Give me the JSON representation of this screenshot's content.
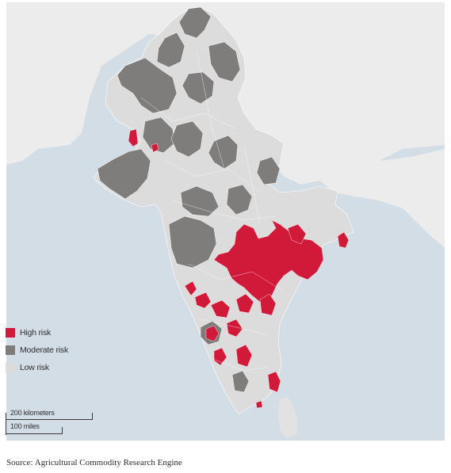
{
  "legend": {
    "items": [
      {
        "label": "High risk",
        "color": "#d11a3a"
      },
      {
        "label": "Moderate risk",
        "color": "#7f7d7c"
      },
      {
        "label": "Low risk",
        "color": "#dcdcdc"
      }
    ]
  },
  "scale": {
    "km_label": "200 kilometers",
    "mi_label": "100 miles"
  },
  "source": "Source: Agricultural Commodity Research Engine",
  "colors": {
    "sea": "#d3dde6",
    "land_background": "#ececec",
    "high_risk": "#d11a3a",
    "moderate_risk": "#7f7d7c",
    "low_risk": "#dcdcdc",
    "district_border": "#ffffff"
  }
}
